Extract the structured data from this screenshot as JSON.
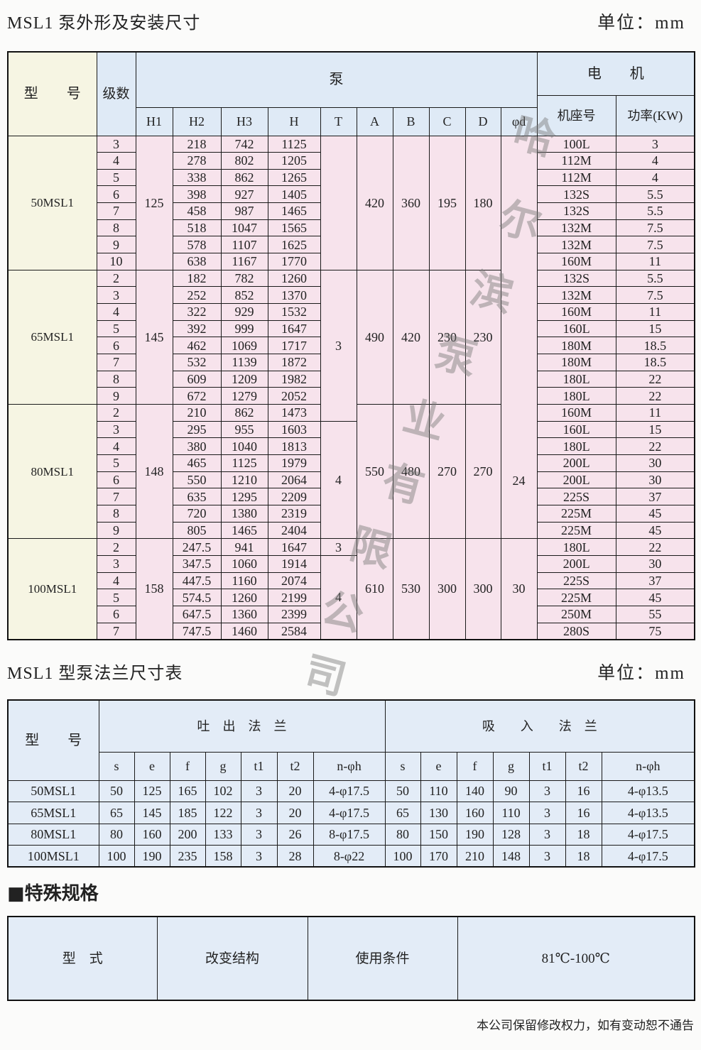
{
  "section1": {
    "title": "MSL1 泵外形及安装尺寸",
    "unit": "单位：mm",
    "headers": {
      "model": "型　　号",
      "stages": "级数",
      "pump": "泵",
      "motor": "电　　机",
      "pump_cols": [
        "H1",
        "H2",
        "H3",
        "H",
        "T",
        "A",
        "B",
        "C",
        "D",
        "φd"
      ],
      "motor_cols": [
        "机座号",
        "功率(KW)"
      ]
    },
    "groups": [
      {
        "model": "50MSL1",
        "H1": "125",
        "A": "420",
        "B": "360",
        "C": "195",
        "D": "180",
        "rows": [
          {
            "stage": "3",
            "H2": "218",
            "H3": "742",
            "H": "1125",
            "frame": "100L",
            "power": "3"
          },
          {
            "stage": "4",
            "H2": "278",
            "H3": "802",
            "H": "1205",
            "frame": "112M",
            "power": "4"
          },
          {
            "stage": "5",
            "H2": "338",
            "H3": "862",
            "H": "1265",
            "frame": "112M",
            "power": "4"
          },
          {
            "stage": "6",
            "H2": "398",
            "H3": "927",
            "H": "1405",
            "frame": "132S",
            "power": "5.5"
          },
          {
            "stage": "7",
            "H2": "458",
            "H3": "987",
            "H": "1465",
            "frame": "132S",
            "power": "5.5"
          },
          {
            "stage": "8",
            "H2": "518",
            "H3": "1047",
            "H": "1565",
            "frame": "132M",
            "power": "7.5"
          },
          {
            "stage": "9",
            "H2": "578",
            "H3": "1107",
            "H": "1625",
            "frame": "132M",
            "power": "7.5"
          },
          {
            "stage": "10",
            "H2": "638",
            "H3": "1167",
            "H": "1770",
            "frame": "160M",
            "power": "11"
          }
        ]
      },
      {
        "model": "65MSL1",
        "H1": "145",
        "A": "490",
        "B": "420",
        "C": "230",
        "D": "230",
        "rows": [
          {
            "stage": "2",
            "H2": "182",
            "H3": "782",
            "H": "1260",
            "frame": "132S",
            "power": "5.5"
          },
          {
            "stage": "3",
            "H2": "252",
            "H3": "852",
            "H": "1370",
            "frame": "132M",
            "power": "7.5"
          },
          {
            "stage": "4",
            "H2": "322",
            "H3": "929",
            "H": "1532",
            "frame": "160M",
            "power": "11"
          },
          {
            "stage": "5",
            "H2": "392",
            "H3": "999",
            "H": "1647",
            "frame": "160L",
            "power": "15"
          },
          {
            "stage": "6",
            "H2": "462",
            "H3": "1069",
            "H": "1717",
            "frame": "180M",
            "power": "18.5"
          },
          {
            "stage": "7",
            "H2": "532",
            "H3": "1139",
            "H": "1872",
            "frame": "180M",
            "power": "18.5"
          },
          {
            "stage": "8",
            "H2": "609",
            "H3": "1209",
            "H": "1982",
            "frame": "180L",
            "power": "22"
          },
          {
            "stage": "9",
            "H2": "672",
            "H3": "1279",
            "H": "2052",
            "frame": "180L",
            "power": "22"
          }
        ]
      },
      {
        "model": "80MSL1",
        "H1": "148",
        "A": "550",
        "B": "480",
        "C": "270",
        "D": "270",
        "rows": [
          {
            "stage": "2",
            "H2": "210",
            "H3": "862",
            "H": "1473",
            "frame": "160M",
            "power": "11"
          },
          {
            "stage": "3",
            "H2": "295",
            "H3": "955",
            "H": "1603",
            "frame": "160L",
            "power": "15"
          },
          {
            "stage": "4",
            "H2": "380",
            "H3": "1040",
            "H": "1813",
            "frame": "180L",
            "power": "22"
          },
          {
            "stage": "5",
            "H2": "465",
            "H3": "1125",
            "H": "1979",
            "frame": "200L",
            "power": "30"
          },
          {
            "stage": "6",
            "H2": "550",
            "H3": "1210",
            "H": "2064",
            "frame": "200L",
            "power": "30"
          },
          {
            "stage": "7",
            "H2": "635",
            "H3": "1295",
            "H": "2209",
            "frame": "225S",
            "power": "37"
          },
          {
            "stage": "8",
            "H2": "720",
            "H3": "1380",
            "H": "2319",
            "frame": "225M",
            "power": "45"
          },
          {
            "stage": "9",
            "H2": "805",
            "H3": "1465",
            "H": "2404",
            "frame": "225M",
            "power": "45"
          }
        ]
      },
      {
        "model": "100MSL1",
        "H1": "158",
        "A": "610",
        "B": "530",
        "C": "300",
        "D": "300",
        "rows": [
          {
            "stage": "2",
            "H2": "247.5",
            "H3": "941",
            "H": "1647",
            "frame": "180L",
            "power": "22"
          },
          {
            "stage": "3",
            "H2": "347.5",
            "H3": "1060",
            "H": "1914",
            "frame": "200L",
            "power": "30"
          },
          {
            "stage": "4",
            "H2": "447.5",
            "H3": "1160",
            "H": "2074",
            "frame": "225S",
            "power": "37"
          },
          {
            "stage": "5",
            "H2": "574.5",
            "H3": "1260",
            "H": "2199",
            "frame": "225M",
            "power": "45"
          },
          {
            "stage": "6",
            "H2": "647.5",
            "H3": "1360",
            "H": "2399",
            "frame": "250M",
            "power": "55"
          },
          {
            "stage": "7",
            "H2": "747.5",
            "H3": "1460",
            "H": "2584",
            "frame": "280S",
            "power": "75"
          }
        ]
      }
    ],
    "T_segments": [
      {
        "value": "",
        "span": 8
      },
      {
        "value": "3",
        "span": 9
      },
      {
        "value": "4",
        "span": 7
      },
      {
        "value": "3",
        "span": 1
      },
      {
        "value": "4",
        "span": 5
      }
    ],
    "phi_d_segments": [
      {
        "value": "24",
        "span": 24
      },
      {
        "value": "30",
        "span": 6
      }
    ]
  },
  "section2": {
    "title": "MSL1 型泵法兰尺寸表",
    "unit": "单位：mm",
    "headers": {
      "model": "型　　号",
      "outlet": "吐　出　法　兰",
      "inlet": "吸　　入　　法　兰",
      "cols": [
        "s",
        "e",
        "f",
        "g",
        "t1",
        "t2",
        "n-φh"
      ]
    },
    "rows": [
      {
        "model": "50MSL1",
        "outlet": [
          "50",
          "125",
          "165",
          "102",
          "3",
          "20",
          "4-φ17.5"
        ],
        "inlet": [
          "50",
          "110",
          "140",
          "90",
          "3",
          "16",
          "4-φ13.5"
        ]
      },
      {
        "model": "65MSL1",
        "outlet": [
          "65",
          "145",
          "185",
          "122",
          "3",
          "20",
          "4-φ17.5"
        ],
        "inlet": [
          "65",
          "130",
          "160",
          "110",
          "3",
          "16",
          "4-φ13.5"
        ]
      },
      {
        "model": "80MSL1",
        "outlet": [
          "80",
          "160",
          "200",
          "133",
          "3",
          "26",
          "8-φ17.5"
        ],
        "inlet": [
          "80",
          "150",
          "190",
          "128",
          "3",
          "18",
          "4-φ17.5"
        ]
      },
      {
        "model": "100MSL1",
        "outlet": [
          "100",
          "190",
          "235",
          "158",
          "3",
          "28",
          "8-φ22"
        ],
        "inlet": [
          "100",
          "170",
          "210",
          "148",
          "3",
          "18",
          "4-φ17.5"
        ]
      }
    ]
  },
  "section3": {
    "title": "■特殊规格",
    "cells": [
      "型　式",
      "改变结构",
      "使用条件",
      "81℃-100℃"
    ]
  },
  "footer": "本公司保留修改权力，如有变动恕不通告",
  "watermark": "哈尔滨泵业有限公司",
  "colors": {
    "header_blue": "#dfeaf6",
    "data_pink": "#f7e3ec",
    "model_cream": "#f6f5e3",
    "flange_blue": "#e3ecf7"
  }
}
